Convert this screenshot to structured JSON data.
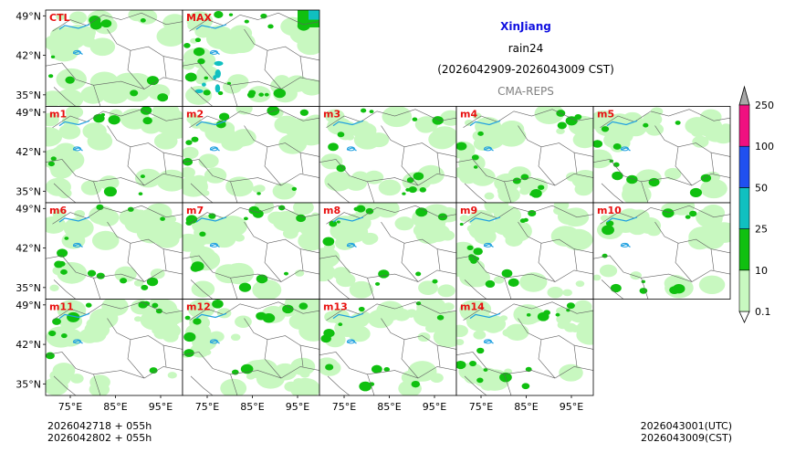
{
  "title": {
    "region": "XinJiang",
    "variable": "rain24",
    "valid_range": "(2026042909-2026043009 CST)",
    "model": "CMA-REPS"
  },
  "panels": [
    "CTL",
    "MAX",
    "m1",
    "m2",
    "m3",
    "m4",
    "m5",
    "m6",
    "m7",
    "m8",
    "m9",
    "m10",
    "m11",
    "m12",
    "m13",
    "m14"
  ],
  "axes": {
    "lat_labels": [
      "49°N",
      "42°N",
      "35°N"
    ],
    "lon_labels": [
      "75°E",
      "85°E",
      "95°E"
    ]
  },
  "colorbar": {
    "levels": [
      "0.1",
      "10",
      "25",
      "50",
      "100",
      "250"
    ],
    "colors": [
      "#c8f8c0",
      "#10c010",
      "#10c0c0",
      "#2050f0",
      "#f01080",
      "#a8a8a8"
    ],
    "extend": "both"
  },
  "footer": {
    "init_utc": "2026042718  +  055h",
    "init_cst": "2026042802  +  055h",
    "valid_utc": "2026043001(UTC)",
    "valid_cst": "2026043009(CST)"
  },
  "colors": {
    "panel_label": "#e81010",
    "light_rain": "#c8f8c0",
    "moderate_rain": "#10c010",
    "heavy_rain": "#10c0c0",
    "lake": "#20a0e0",
    "border": "#606060"
  }
}
